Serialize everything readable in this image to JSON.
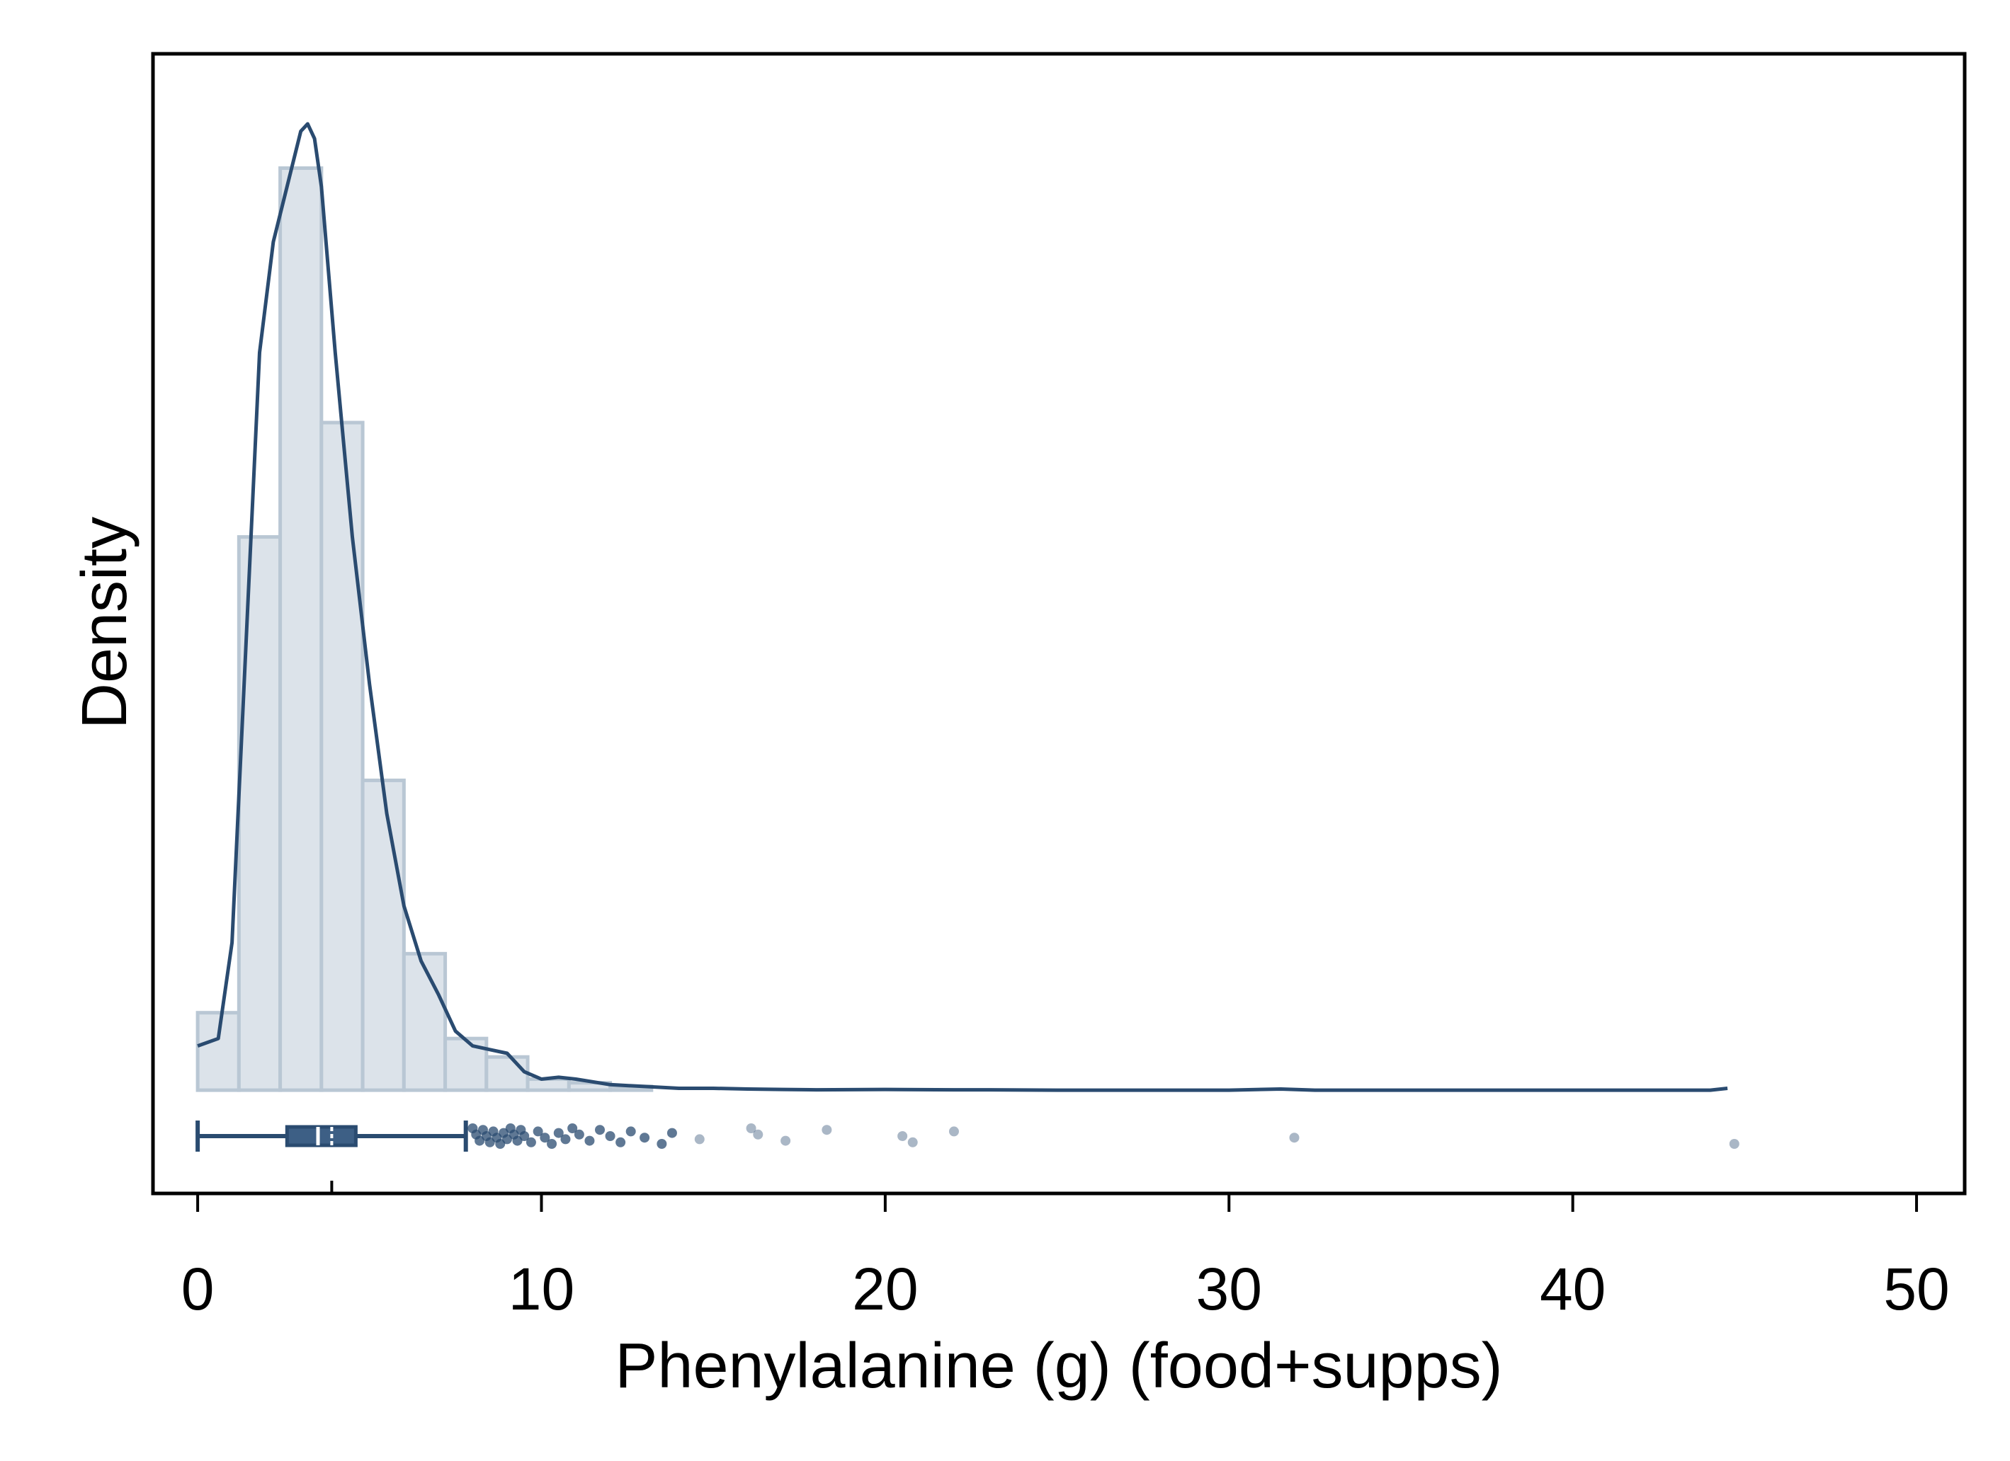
{
  "chart_data": {
    "type": "histogram",
    "xlabel": "Phenylalanine (g) (food+supps)",
    "ylabel": "Density",
    "xlim": [
      -1.3,
      51.4
    ],
    "ylim": [
      -0.028,
      0.281
    ],
    "x_ticks": [
      0,
      10,
      20,
      30,
      40,
      50
    ],
    "y_tick_labels_shown": false,
    "grid": false,
    "colors": {
      "bar_fill": "#dce3ea",
      "bar_edge": "#b9c7d4",
      "line": "#2a4b70",
      "points": "#2a4b70"
    },
    "histogram": {
      "bin_width": 1.2,
      "bins": [
        {
          "x0": 0.0,
          "x1": 1.2,
          "density": 0.021
        },
        {
          "x0": 1.2,
          "x1": 2.4,
          "density": 0.15
        },
        {
          "x0": 2.4,
          "x1": 3.6,
          "density": 0.25
        },
        {
          "x0": 3.6,
          "x1": 4.8,
          "density": 0.181
        },
        {
          "x0": 4.8,
          "x1": 6.0,
          "density": 0.084
        },
        {
          "x0": 6.0,
          "x1": 7.2,
          "density": 0.037
        },
        {
          "x0": 7.2,
          "x1": 8.4,
          "density": 0.014
        },
        {
          "x0": 8.4,
          "x1": 9.6,
          "density": 0.009
        },
        {
          "x0": 9.6,
          "x1": 10.8,
          "density": 0.003
        },
        {
          "x0": 10.8,
          "x1": 12.0,
          "density": 0.002
        },
        {
          "x0": 12.0,
          "x1": 13.2,
          "density": 0.001
        }
      ]
    },
    "density_curve": {
      "x": [
        0.0,
        0.6,
        1.0,
        1.4,
        1.8,
        2.2,
        2.6,
        3.0,
        3.2,
        3.4,
        3.6,
        4.0,
        4.5,
        5.0,
        5.5,
        6.0,
        6.5,
        7.0,
        7.5,
        8.0,
        8.5,
        9.0,
        9.5,
        10.0,
        10.5,
        11.0,
        12.0,
        13.0,
        14.0,
        15.0,
        16.0,
        17.0,
        18.0,
        20.0,
        22.0,
        23.0,
        25.0,
        30.0,
        31.5,
        32.5,
        35.0,
        40.0,
        44.0,
        44.5
      ],
      "y": [
        0.012,
        0.014,
        0.04,
        0.12,
        0.2,
        0.23,
        0.245,
        0.26,
        0.262,
        0.258,
        0.245,
        0.2,
        0.15,
        0.11,
        0.075,
        0.05,
        0.035,
        0.026,
        0.016,
        0.012,
        0.011,
        0.01,
        0.005,
        0.003,
        0.0035,
        0.003,
        0.0015,
        0.001,
        0.0005,
        0.0005,
        0.0003,
        0.0002,
        0.0001,
        0.0002,
        0.0001,
        0.0001,
        0.0,
        0.0,
        0.0003,
        0.0,
        0.0,
        0.0,
        0.0,
        0.0005
      ]
    },
    "boxplot": {
      "whisker_low": 0.0,
      "q1": 2.6,
      "median": 3.5,
      "q3": 4.6,
      "whisker_high": 7.8,
      "mean": 3.9,
      "outliers": [
        8.0,
        8.1,
        8.2,
        8.3,
        8.4,
        8.5,
        8.6,
        8.7,
        8.8,
        8.9,
        9.0,
        9.1,
        9.2,
        9.3,
        9.4,
        9.5,
        9.7,
        9.9,
        10.1,
        10.3,
        10.5,
        10.7,
        10.9,
        11.1,
        11.4,
        11.7,
        12.0,
        12.3,
        12.6,
        13.0,
        13.5,
        13.8,
        14.6,
        16.1,
        16.3,
        17.1,
        18.3,
        20.5,
        20.8,
        22.0,
        31.9,
        44.7
      ]
    }
  }
}
